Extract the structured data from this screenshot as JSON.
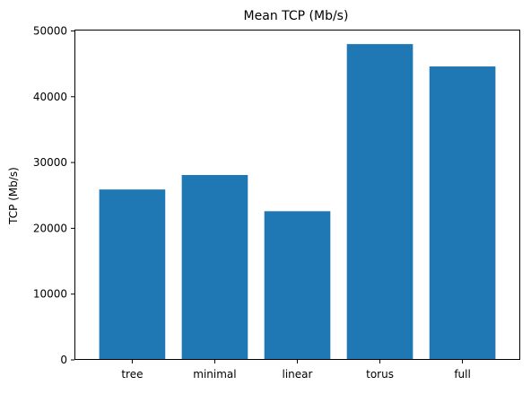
{
  "chart_data": {
    "type": "bar",
    "title": "Mean TCP (Mb/s)",
    "xlabel": "",
    "ylabel": "TCP (Mb/s)",
    "categories": [
      "tree",
      "minimal",
      "linear",
      "torus",
      "full"
    ],
    "values": [
      25900,
      28100,
      22600,
      48000,
      44600
    ],
    "ylim": [
      0,
      50200
    ],
    "yticks": [
      0,
      10000,
      20000,
      30000,
      40000,
      50000
    ],
    "grid": false,
    "legend": "none",
    "bar_color": "#1f77b4"
  }
}
